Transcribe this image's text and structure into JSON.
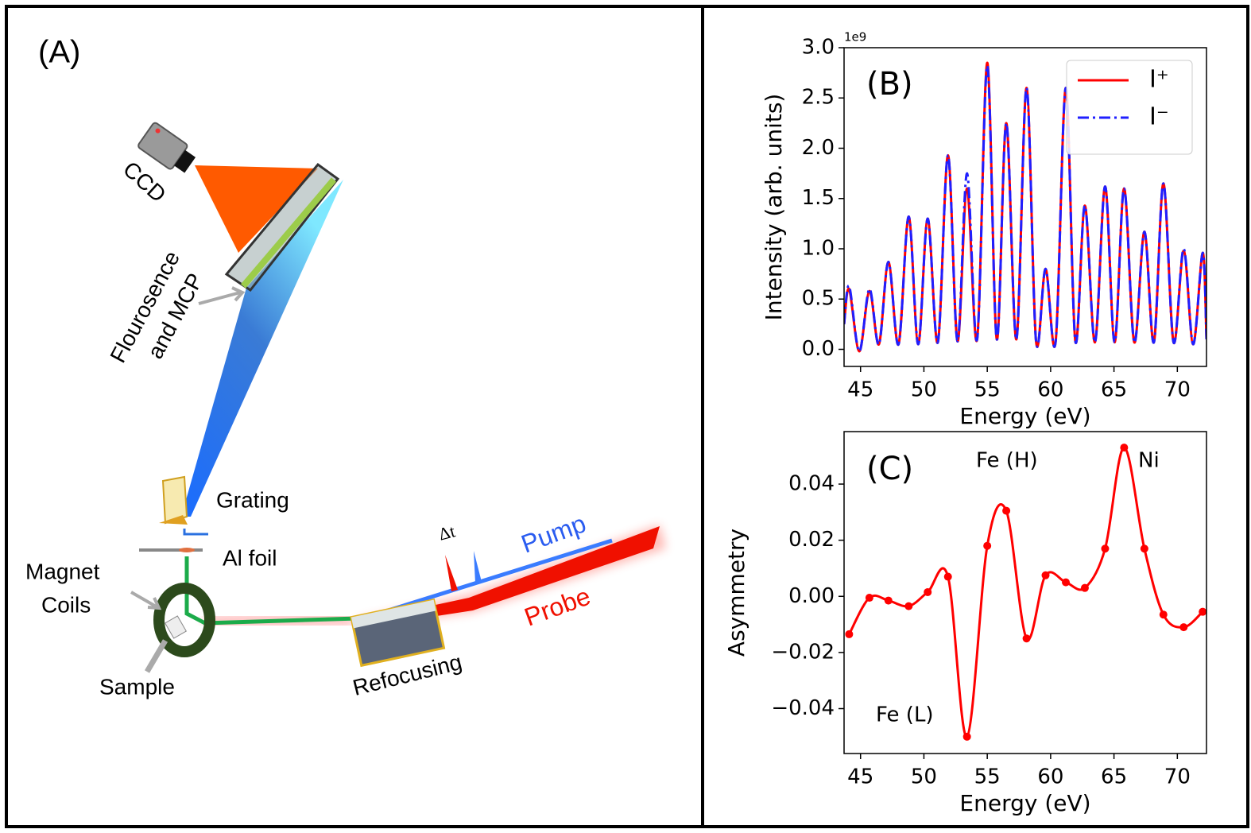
{
  "diagram": {
    "label": "(A)",
    "ccd": "CCD",
    "mcp": [
      "Flourosence",
      "and MCP"
    ],
    "grating": "Grating",
    "al_foil": "Al foil",
    "magnet": [
      "Magnet",
      "Coils"
    ],
    "sample": "Sample",
    "refocusing": "Refocusing",
    "pump": "Pump",
    "probe": "Probe",
    "delay": "Δt"
  },
  "chart_data": [
    {
      "type": "line",
      "annotations": [
        "(B)"
      ],
      "y_offset_label": "1e9",
      "xlabel": "Energy (eV)",
      "ylabel": "Intensity (arb. units)",
      "x": [
        43.7,
        44.1,
        44.9,
        45.7,
        46.45,
        47.2,
        48.0,
        48.8,
        49.55,
        50.3,
        51.1,
        51.9,
        52.65,
        53.4,
        54.2,
        55.0,
        55.75,
        56.5,
        57.3,
        58.1,
        58.85,
        59.6,
        60.4,
        61.2,
        61.95,
        62.7,
        63.5,
        64.3,
        65.05,
        65.8,
        66.6,
        67.4,
        68.15,
        68.9,
        69.7,
        70.5,
        71.25,
        72.0,
        72.3
      ],
      "series": [
        {
          "name": "I⁺",
          "color": "#ff0000",
          "linestyle": "solid",
          "values": [
            0.25,
            0.6,
            -0.02,
            0.58,
            0.05,
            0.87,
            0.05,
            1.32,
            0.05,
            1.3,
            0.07,
            1.93,
            0.08,
            1.6,
            0.1,
            2.85,
            0.1,
            2.25,
            0.1,
            2.6,
            0.08,
            0.8,
            0.08,
            2.6,
            0.08,
            1.43,
            0.07,
            1.62,
            0.07,
            1.6,
            0.07,
            1.17,
            0.07,
            1.65,
            0.07,
            0.98,
            0.05,
            0.96,
            0.1
          ]
        },
        {
          "name": "I⁻",
          "color": "#1f1fff",
          "linestyle": "dashdot",
          "values": [
            0.25,
            0.63,
            -0.02,
            0.6,
            0.05,
            0.87,
            0.05,
            1.32,
            0.05,
            1.3,
            0.07,
            1.93,
            0.08,
            1.75,
            0.1,
            2.82,
            0.1,
            2.25,
            0.1,
            2.6,
            0.08,
            0.8,
            0.08,
            2.6,
            0.08,
            1.43,
            0.07,
            1.62,
            0.07,
            1.6,
            0.07,
            1.17,
            0.07,
            1.65,
            0.07,
            1.0,
            0.05,
            0.96,
            0.1
          ]
        }
      ],
      "xlim": [
        43.7,
        72.3
      ],
      "ylim": [
        -0.17,
        3.0
      ],
      "xticks": [
        45,
        50,
        55,
        60,
        65,
        70
      ],
      "yticks": [
        {
          "value": 0,
          "label": "0.0"
        },
        0.5,
        {
          "value": 1,
          "label": "1.0"
        },
        1.5,
        {
          "value": 2,
          "label": "2.0"
        },
        2.5,
        {
          "value": 3,
          "label": "3.0"
        }
      ],
      "legend": "upper right"
    },
    {
      "type": "line",
      "annotations": [
        "(C)",
        "Fe (H)",
        "Ni",
        "Fe (L)"
      ],
      "xlabel": "Energy (eV)",
      "ylabel": "Asymmetry",
      "x": [
        44.1,
        45.7,
        47.2,
        48.8,
        50.3,
        51.9,
        53.4,
        55.0,
        56.5,
        58.1,
        59.6,
        61.2,
        62.7,
        64.3,
        65.8,
        67.4,
        68.9,
        70.5,
        72.0
      ],
      "series": [
        {
          "color": "#ff0000",
          "linestyle": "solid",
          "markers": true,
          "values": [
            -0.0135,
            -0.0005,
            -0.0015,
            -0.0035,
            0.0015,
            0.007,
            -0.05,
            0.018,
            0.0305,
            -0.015,
            0.0075,
            0.005,
            0.003,
            0.017,
            0.053,
            0.017,
            -0.0065,
            -0.011,
            -0.0055
          ]
        }
      ],
      "xlim": [
        43.7,
        72.3
      ],
      "ylim": [
        -0.056,
        0.0587
      ],
      "xticks": [
        45,
        50,
        55,
        60,
        65,
        70
      ],
      "yticks": [
        {
          "value": -0.04,
          "label": "−0.04"
        },
        {
          "value": -0.02,
          "label": "−0.02"
        },
        {
          "value": 0,
          "label": "0.00"
        },
        0.02,
        0.04
      ]
    }
  ]
}
